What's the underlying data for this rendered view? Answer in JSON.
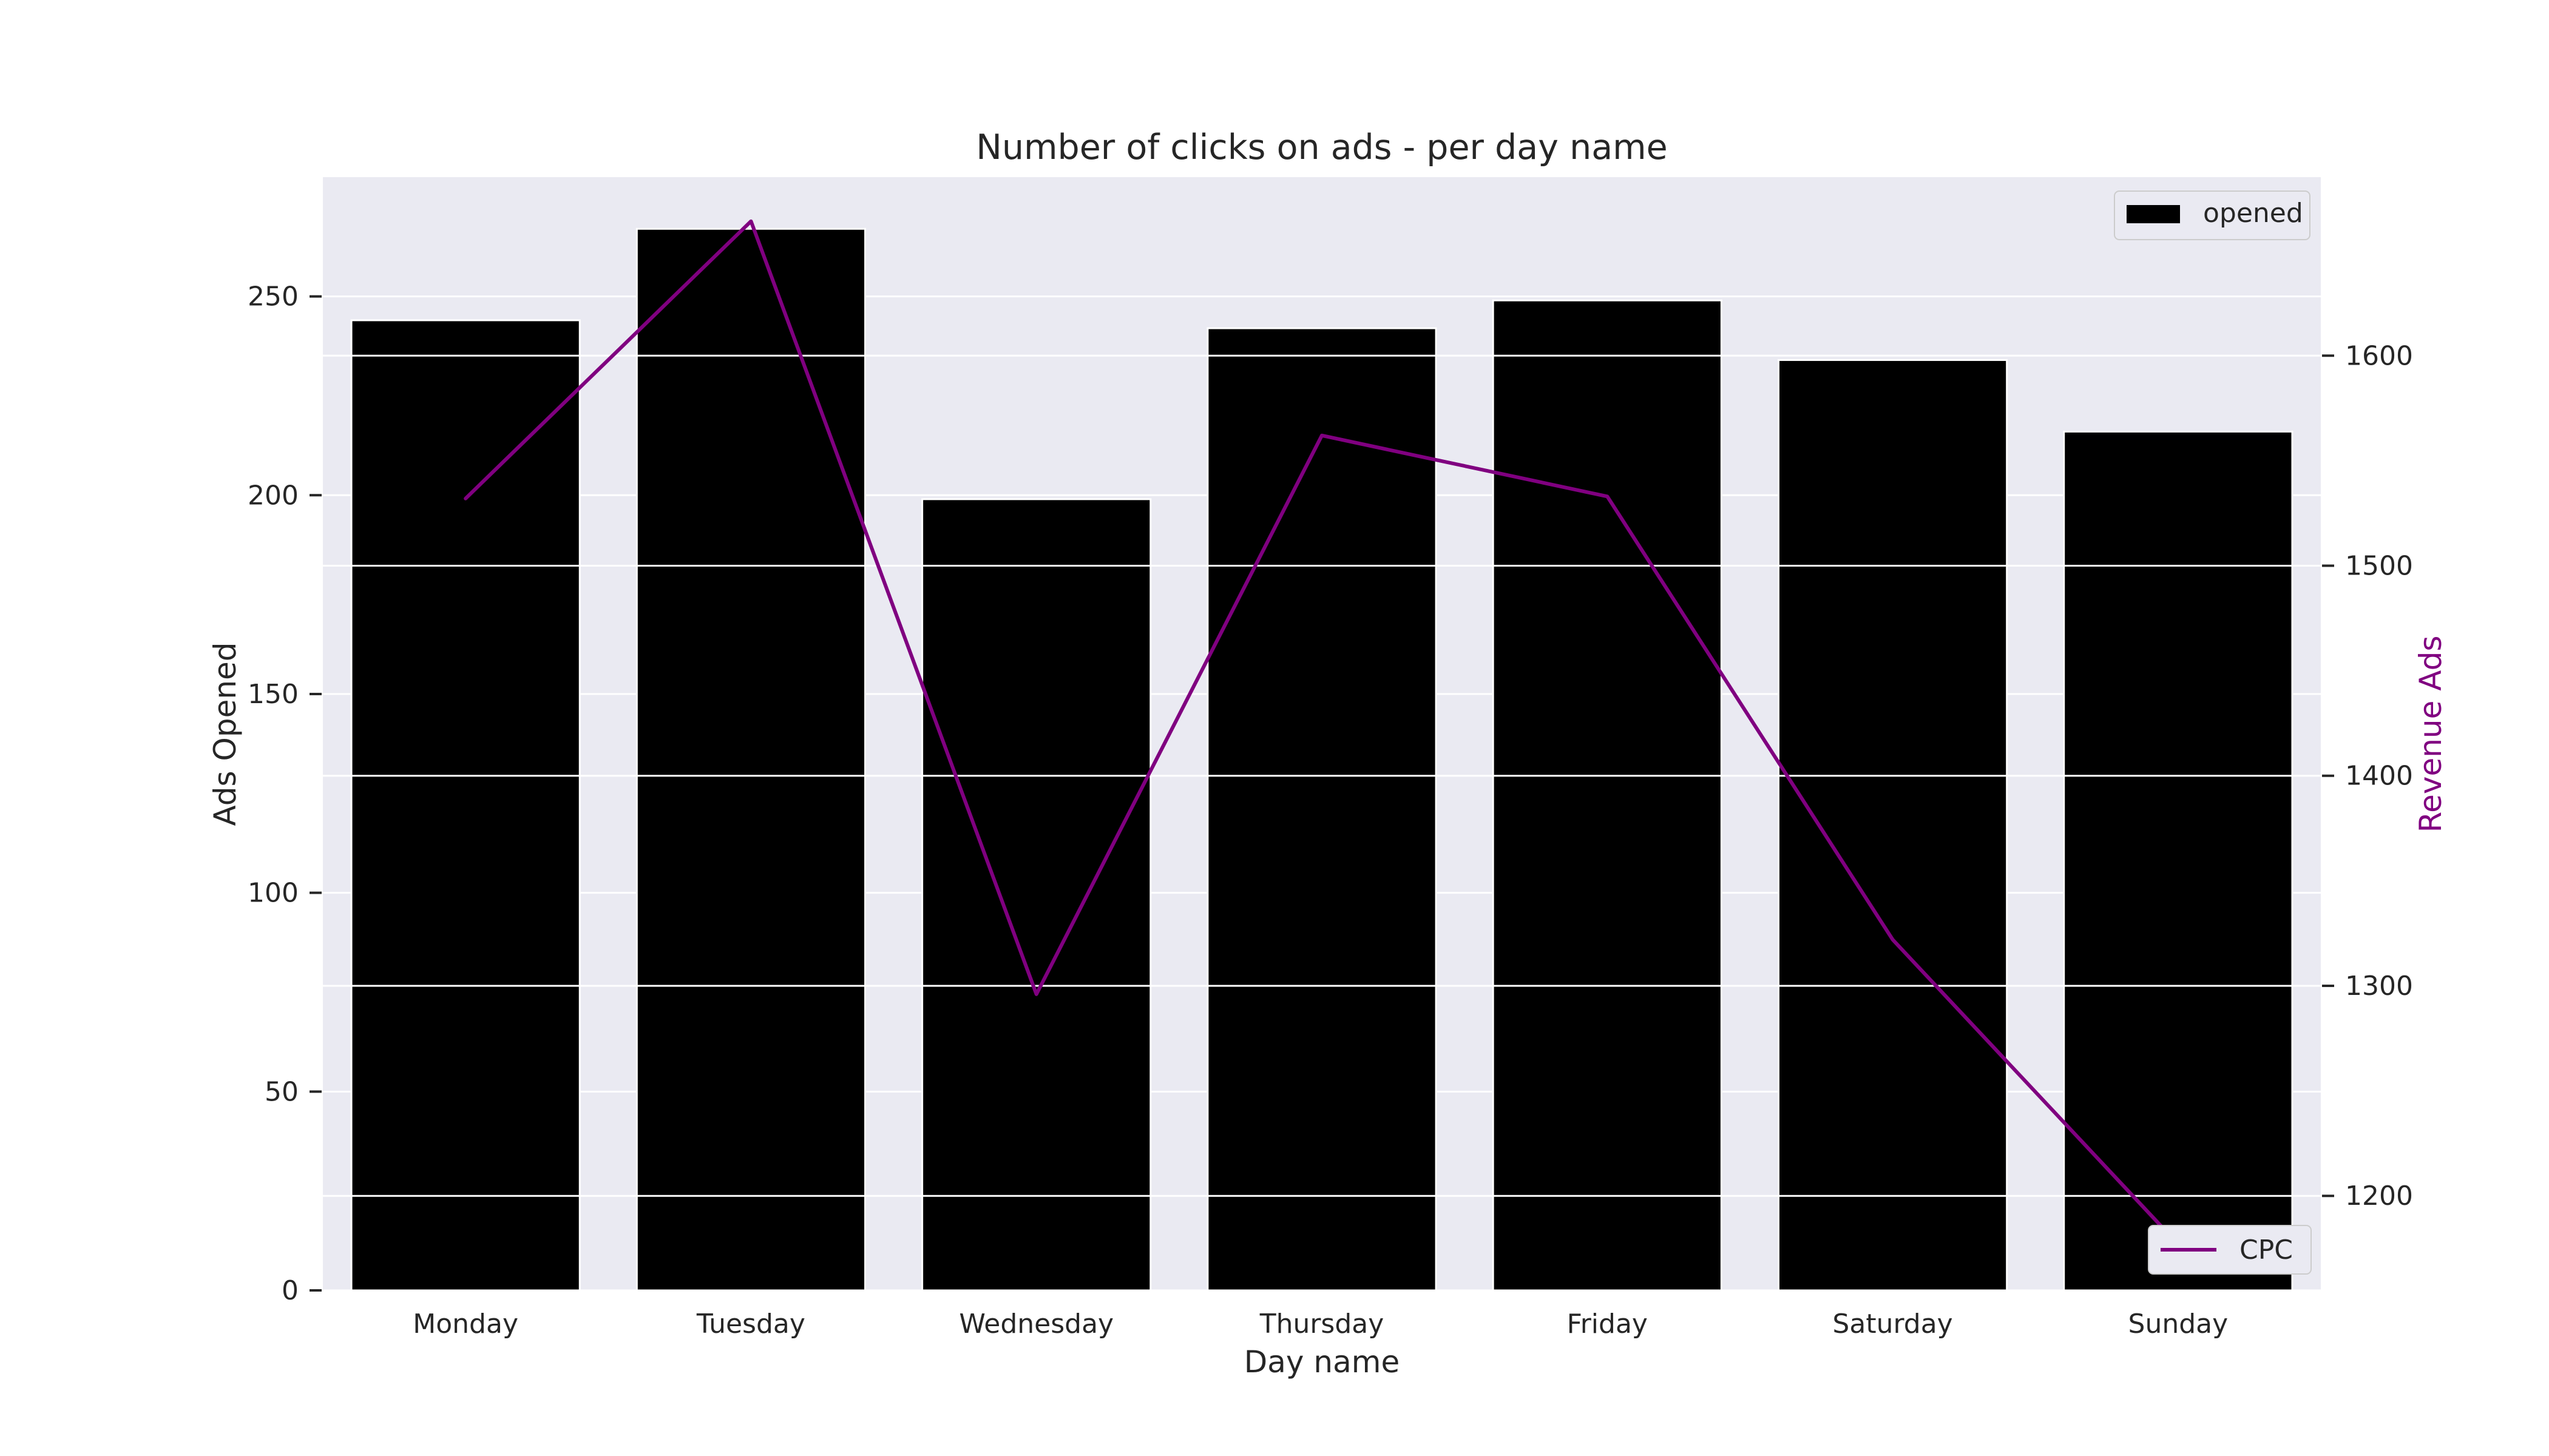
{
  "chart_data": {
    "type": "bar",
    "title": "Number of clicks on ads - per day name",
    "xlabel": "Day name",
    "ylabel": "Ads Opened",
    "y2label": "Revenue Ads",
    "categories": [
      "Monday",
      "Tuesday",
      "Wednesday",
      "Thursday",
      "Friday",
      "Saturday",
      "Sunday"
    ],
    "ylim": [
      0,
      280
    ],
    "yticks": [
      0,
      50,
      100,
      150,
      200,
      250
    ],
    "y2lim": [
      1155,
      1685
    ],
    "y2ticks": [
      1200,
      1300,
      1400,
      1500,
      1600
    ],
    "grid": true,
    "series": [
      {
        "name": "opened",
        "type": "bar",
        "axis": "left",
        "color": "#000000",
        "values": [
          244,
          267,
          199,
          242,
          249,
          234,
          216
        ]
      },
      {
        "name": "CPC",
        "type": "line",
        "axis": "right",
        "color": "#800080",
        "values": [
          1532,
          1664,
          1296,
          1562,
          1533,
          1322,
          1177
        ]
      }
    ],
    "legend": [
      {
        "label": "opened",
        "placement": "upper-right"
      },
      {
        "label": "CPC",
        "placement": "lower-right"
      }
    ],
    "colors": {
      "plot_background": "#eaeaf2",
      "grid": "#ffffff",
      "y2label": "#800080"
    }
  }
}
